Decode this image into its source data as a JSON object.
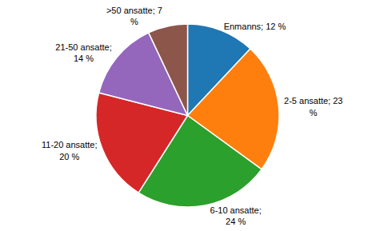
{
  "chart_data": {
    "type": "pie",
    "categories": [
      "Enmanns",
      "2-5 ansatte",
      "6-10 ansatte",
      "11-20 ansatte",
      "21-50 ansatte",
      ">50 ansatte"
    ],
    "values": [
      12,
      23,
      24,
      20,
      14,
      7
    ],
    "value_labels": [
      "Enmanns; 12 %",
      "2-5 ansatte; 23\n%",
      "6-10 ansatte;\n24 %",
      "11-20 ansatte;\n20 %",
      "21-50 ansatte;\n14 %",
      ">50 ansatte; 7\n%"
    ],
    "data_labels": true
  }
}
